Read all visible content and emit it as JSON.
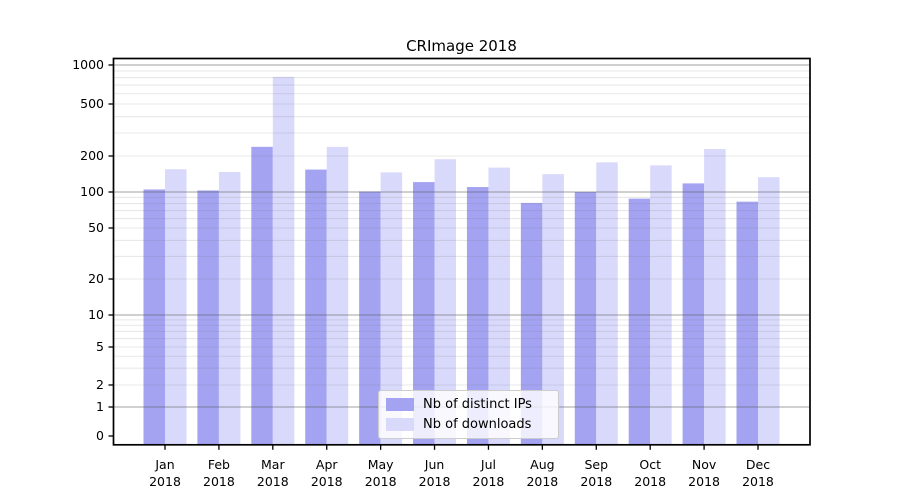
{
  "chart_data": {
    "type": "bar",
    "title": "CRImage 2018",
    "categories": [
      "Jan 2018",
      "Feb 2018",
      "Mar 2018",
      "Apr 2018",
      "May 2018",
      "Jun 2018",
      "Jul 2018",
      "Aug 2018",
      "Sep 2018",
      "Oct 2018",
      "Nov 2018",
      "Dec 2018"
    ],
    "series": [
      {
        "name": "Nb of distinct IPs",
        "color": "#a3a3f2",
        "values": [
          105,
          103,
          235,
          154,
          101,
          121,
          110,
          81,
          100,
          88,
          118,
          83
        ]
      },
      {
        "name": "Nb of downloads",
        "color": "#d9d9fb",
        "values": [
          155,
          147,
          810,
          235,
          146,
          188,
          160,
          141,
          177,
          167,
          226,
          133
        ]
      }
    ],
    "xlabel": "",
    "ylabel": "",
    "yscale": "symlog",
    "y_ticks": [
      0,
      1,
      2,
      5,
      10,
      20,
      50,
      100,
      200,
      500,
      1000
    ],
    "ylim": [
      0,
      1000
    ],
    "grid": true,
    "legend_position": "bottom-center-inside"
  },
  "colors": {
    "bar_distinct_ips": "#a3a3f2",
    "bar_downloads": "#d9d9fb",
    "axis_frame": "#000000",
    "grid_major": "#bababa",
    "grid_minor": "#e9e9e9",
    "legend_border": "#cccccc"
  }
}
